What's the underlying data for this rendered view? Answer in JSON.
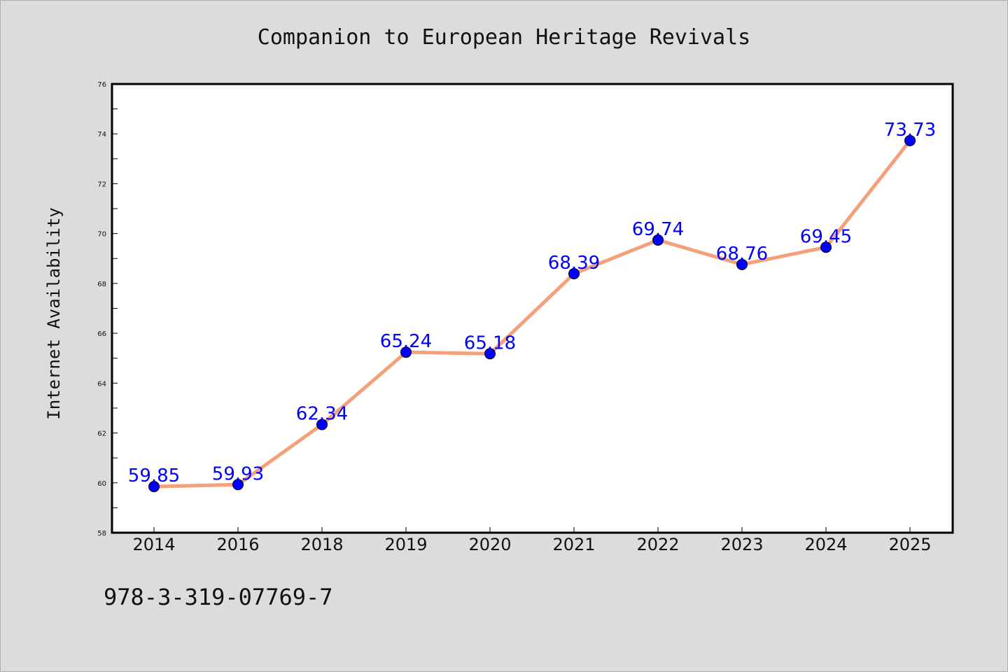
{
  "colors": {
    "background": "#dcdcdc",
    "plot_background": "#ffffff",
    "line": "#f4a07a",
    "marker": "#0000ff",
    "label": "#0000ff",
    "axis": "#000000"
  },
  "isbn": "978-3-319-07769-7",
  "chart_data": {
    "type": "line",
    "title": "Companion to European Heritage Revivals",
    "xlabel": "",
    "ylabel": "Internet Availability",
    "categories": [
      "2014",
      "2016",
      "2018",
      "2019",
      "2020",
      "2021",
      "2022",
      "2023",
      "2024",
      "2025"
    ],
    "series": [
      {
        "values": [
          59.85,
          59.93,
          62.34,
          65.24,
          65.18,
          68.39,
          69.74,
          68.76,
          69.45,
          73.73
        ],
        "labels": [
          "59.85",
          "59.93",
          "62.34",
          "65.24",
          "65.18",
          "68.39",
          "69.74",
          "68.76",
          "69.45",
          "73.73"
        ]
      }
    ],
    "ylim": [
      58,
      76
    ],
    "yticks": [
      "58",
      "60",
      "62",
      "64",
      "66",
      "68",
      "70",
      "72",
      "74",
      "76"
    ],
    "grid": false,
    "legend": "none"
  }
}
